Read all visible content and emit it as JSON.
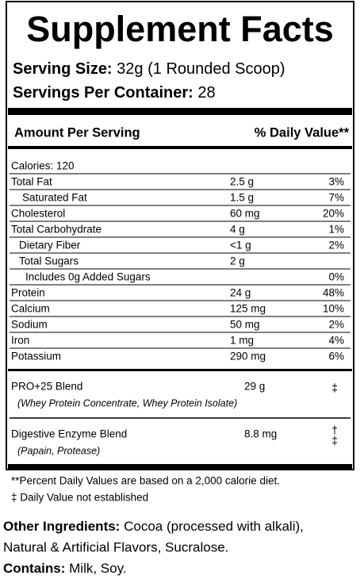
{
  "title": "Supplement Facts",
  "serving_size": {
    "label": "Serving Size:",
    "value": "32g (1 Rounded Scoop)"
  },
  "servings_per_container": {
    "label": "Servings Per Container:",
    "value": "28"
  },
  "header": {
    "amount": "Amount Per Serving",
    "daily_value": "% Daily Value**"
  },
  "calories": "Calories: 120",
  "nutrients": [
    {
      "name": "Total Fat",
      "amount": "2.5 g",
      "dv": "3%"
    },
    {
      "name": "Saturated Fat",
      "amount": "1.5 g",
      "dv": "7%"
    },
    {
      "name": "Cholesterol",
      "amount": "60 mg",
      "dv": "20%"
    },
    {
      "name": "Total Carbohydrate",
      "amount": "4 g",
      "dv": "1%"
    },
    {
      "name": "Dietary Fiber",
      "amount": "<1 g",
      "dv": "2%"
    },
    {
      "name": "Total Sugars",
      "amount": "2 g"
    },
    {
      "name": "Includes 0g Added Sugars",
      "dv": "0%"
    },
    {
      "name": "Protein",
      "amount": "24 g",
      "dv": "48%"
    },
    {
      "name": "Calcium",
      "amount": "125 mg",
      "dv": "10%"
    },
    {
      "name": "Sodium",
      "amount": "50 mg",
      "dv": "2%"
    },
    {
      "name": "Iron",
      "amount": "1 mg",
      "dv": "4%"
    },
    {
      "name": "Potassium",
      "amount": "290 mg",
      "dv": "6%"
    }
  ],
  "blends": [
    {
      "name": "PRO+25 Blend",
      "amount": "29 g",
      "dv": [
        "‡"
      ],
      "ingredients": "(Whey Protein Concentrate, Whey Protein Isolate)"
    },
    {
      "name": "Digestive Enzyme Blend",
      "amount": "8.8 mg",
      "dv": [
        "†",
        "‡"
      ],
      "ingredients": "(Papain, Protease)"
    }
  ],
  "footnotes": [
    "**Percent Daily Values are based on a 2,000 calorie diet.",
    "‡ Daily Value not established"
  ],
  "other_ingredients": {
    "label": "Other Ingredients:",
    "text_lines": [
      "Cocoa (processed with alkali),",
      "Natural & Artificial Flavors, Sucralose."
    ]
  },
  "contains": {
    "label": "Contains:",
    "text": "Milk, Soy."
  }
}
